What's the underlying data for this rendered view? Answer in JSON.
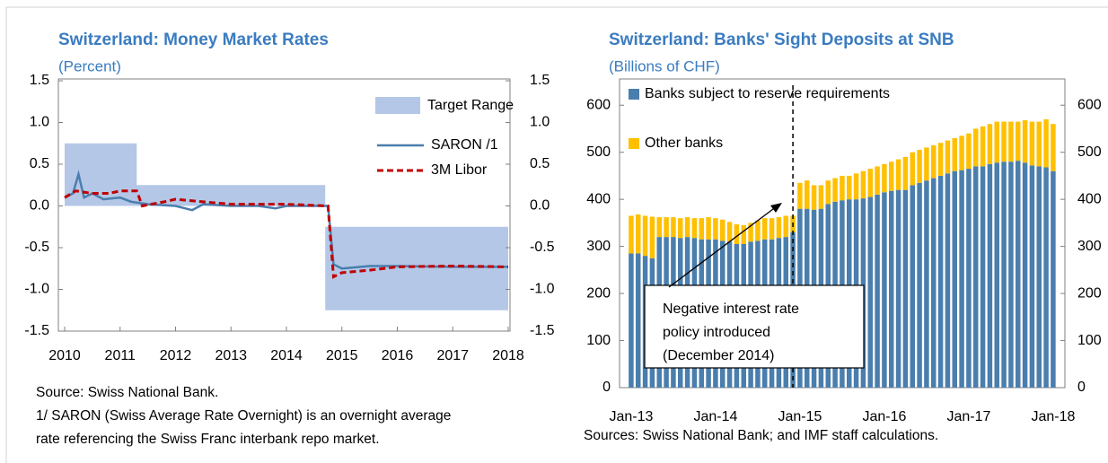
{
  "chart_data": [
    {
      "type": "line",
      "title": "Switzerland:  Money Market Rates",
      "subtitle": "(Percent)",
      "xlim": [
        2010,
        2018
      ],
      "xticks": [
        2010,
        2011,
        2012,
        2013,
        2014,
        2015,
        2016,
        2017,
        2018
      ],
      "ylim": [
        -1.5,
        1.5
      ],
      "yticks": [
        {
          "value": 1.5,
          "label": "1.5"
        },
        {
          "value": 1,
          "label": "1.0"
        },
        {
          "value": 0.5,
          "label": "0.5"
        },
        {
          "value": 0,
          "label": "0.0"
        },
        {
          "value": -0.5,
          "label": "-0.5"
        },
        {
          "value": -1,
          "label": "-1.0"
        },
        {
          "value": -1.5,
          "label": "-1.5"
        }
      ],
      "y2lim": [
        -1.5,
        1.5
      ],
      "y2ticks": [
        {
          "value": 1.5,
          "label": "1.5"
        },
        {
          "value": 1,
          "label": "1.0"
        },
        {
          "value": 0.5,
          "label": "0.5"
        },
        {
          "value": 0,
          "label": "0.0"
        },
        {
          "value": -0.5,
          "label": "-0.5"
        },
        {
          "value": -1,
          "label": "-1.0"
        },
        {
          "value": -1.5,
          "label": "-1.5"
        }
      ],
      "band": {
        "name": "Target Range",
        "color": "#b4c7e7",
        "x": [
          2010,
          2011.3,
          2011.3,
          2014.7,
          2014.7,
          2018
        ],
        "values": [
          0.75,
          0.75,
          0.25,
          0.25,
          -0.25,
          -0.25
        ],
        "low": [
          0,
          0,
          0,
          0,
          -1.25,
          -1.25
        ]
      },
      "series": [
        {
          "name": "SARON /1",
          "color": "#4a7ead",
          "dash": false,
          "x": [
            2010,
            2010.15,
            2010.25,
            2010.35,
            2010.5,
            2010.7,
            2011,
            2011.2,
            2011.5,
            2012,
            2012.3,
            2012.5,
            2013,
            2013.5,
            2013.8,
            2014,
            2014.5,
            2014.75,
            2014.85,
            2015,
            2015.5,
            2016,
            2017,
            2018
          ],
          "values": [
            0.1,
            0.15,
            0.38,
            0.1,
            0.15,
            0.08,
            0.1,
            0.05,
            0.02,
            0,
            -0.05,
            0.02,
            0,
            0,
            -0.03,
            0,
            0,
            0,
            -0.7,
            -0.75,
            -0.72,
            -0.72,
            -0.73,
            -0.73
          ]
        },
        {
          "name": "3M Libor",
          "color": "#c00000",
          "dash": true,
          "x": [
            2010,
            2010.2,
            2010.5,
            2010.8,
            2011,
            2011.3,
            2011.4,
            2011.8,
            2012,
            2012.5,
            2013,
            2014,
            2014.75,
            2014.85,
            2015,
            2015.5,
            2016,
            2017,
            2018
          ],
          "values": [
            0.1,
            0.18,
            0.15,
            0.15,
            0.18,
            0.18,
            0,
            0.05,
            0.08,
            0.05,
            0.02,
            0.02,
            0,
            -0.85,
            -0.8,
            -0.77,
            -0.73,
            -0.72,
            -0.73
          ]
        }
      ],
      "notes": [
        "Source: Swiss National Bank.",
        "1/ SARON (Swiss Average Rate Overnight) is an overnight average",
        "rate referencing the Swiss Franc interbank repo market."
      ]
    },
    {
      "type": "bar",
      "title": "Switzerland:  Banks' Sight Deposits at SNB",
      "subtitle": "(Billions of CHF)",
      "categories": [
        "Jan-13",
        null,
        null,
        null,
        null,
        null,
        null,
        null,
        null,
        null,
        null,
        null,
        "Jan-14",
        null,
        null,
        null,
        null,
        null,
        null,
        null,
        null,
        null,
        null,
        null,
        "Jan-15",
        null,
        null,
        null,
        null,
        null,
        null,
        null,
        null,
        null,
        null,
        null,
        "Jan-16",
        null,
        null,
        null,
        null,
        null,
        null,
        null,
        null,
        null,
        null,
        null,
        "Jan-17",
        null,
        null,
        null,
        null,
        null,
        null,
        null,
        null,
        null,
        null,
        null,
        "Jan-18"
      ],
      "ylim": [
        0,
        650
      ],
      "yticks": [
        0,
        100,
        200,
        300,
        400,
        500,
        600
      ],
      "y2lim": [
        0,
        650
      ],
      "y2ticks": [
        0,
        100,
        200,
        300,
        400,
        500,
        600
      ],
      "series": [
        {
          "name": "Banks subject to reserve requirements",
          "color": "#4a7ead",
          "values": [
            285,
            285,
            280,
            275,
            320,
            320,
            320,
            318,
            320,
            318,
            315,
            315,
            315,
            312,
            310,
            305,
            305,
            310,
            312,
            315,
            315,
            318,
            320,
            330,
            380,
            380,
            378,
            380,
            390,
            395,
            398,
            400,
            400,
            402,
            405,
            410,
            415,
            418,
            420,
            420,
            430,
            435,
            440,
            445,
            450,
            455,
            460,
            462,
            465,
            470,
            470,
            475,
            478,
            480,
            480,
            482,
            478,
            472,
            470,
            468,
            460
          ]
        },
        {
          "name": "Other banks",
          "color": "#ffc000",
          "values": [
            80,
            83,
            85,
            88,
            42,
            42,
            42,
            42,
            42,
            42,
            45,
            47,
            45,
            45,
            42,
            42,
            40,
            40,
            43,
            45,
            45,
            44,
            45,
            35,
            55,
            60,
            52,
            50,
            50,
            50,
            52,
            50,
            55,
            58,
            60,
            60,
            60,
            62,
            65,
            70,
            70,
            70,
            70,
            70,
            70,
            70,
            70,
            73,
            75,
            80,
            85,
            85,
            87,
            85,
            85,
            83,
            90,
            93,
            95,
            102,
            100
          ]
        }
      ],
      "annotation": [
        "Negative interest rate",
        "policy introduced",
        "(December 2014)"
      ],
      "source": "Sources: Swiss National Bank; and IMF staff calculations."
    }
  ]
}
